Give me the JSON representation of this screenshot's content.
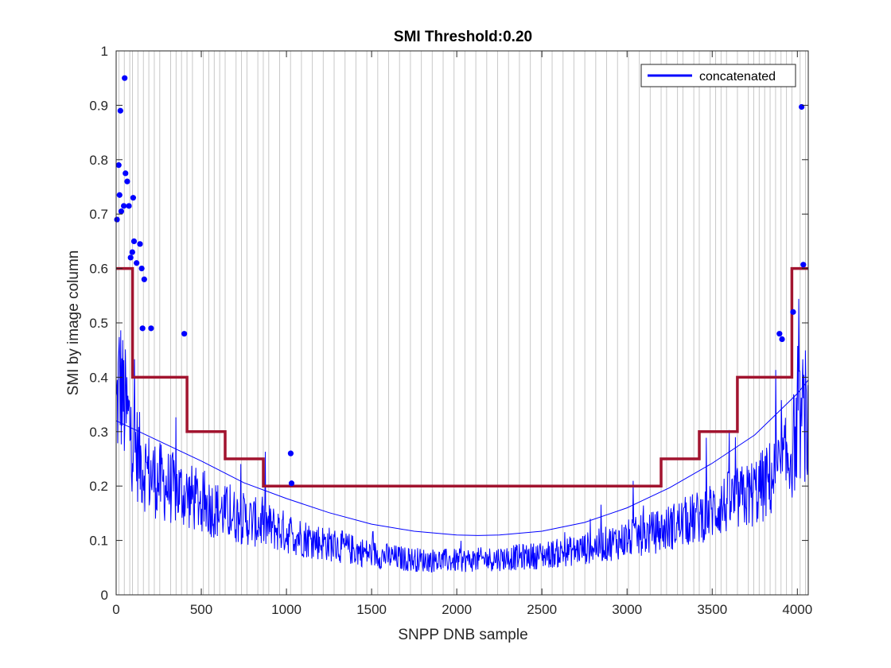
{
  "chart_data": {
    "type": "line",
    "title": "SMI Threshold:0.20",
    "xlabel": "SNPP DNB sample",
    "ylabel": "SMI by image column",
    "xlim": [
      0,
      4064
    ],
    "ylim": [
      0,
      1
    ],
    "xticks": [
      0,
      500,
      1000,
      1500,
      2000,
      2500,
      3000,
      3500,
      4000
    ],
    "xtick_labels": [
      "0",
      "500",
      "1000",
      "1500",
      "2000",
      "2500",
      "3000",
      "3500",
      "4000"
    ],
    "yticks": [
      0,
      0.1,
      0.2,
      0.3,
      0.4,
      0.5,
      0.6,
      0.7,
      0.8,
      0.9,
      1
    ],
    "ytick_labels": [
      "0",
      "0.1",
      "0.2",
      "0.3",
      "0.4",
      "0.5",
      "0.6",
      "0.7",
      "0.8",
      "0.9",
      "1"
    ],
    "grid": false,
    "legend": {
      "position": "top-right",
      "entries": [
        "concatenated"
      ]
    },
    "colors": {
      "series": "#0000ff",
      "threshold": "#a2142f",
      "aggregation_lines": "#c8c8c8"
    },
    "aggregation_boundaries": [
      16,
      48,
      80,
      96,
      128,
      160,
      192,
      224,
      256,
      320,
      352,
      384,
      416,
      448,
      512,
      544,
      576,
      608,
      640,
      704,
      736,
      768,
      832,
      864,
      896,
      960,
      1024,
      1088,
      1152,
      1216,
      1280,
      1344,
      1408,
      1472,
      1536,
      1600,
      1664,
      1728,
      1792,
      1856,
      1920,
      1984,
      2048,
      2112,
      2176,
      2240,
      2304,
      2368,
      2432,
      2496,
      2560,
      2624,
      2688,
      2752,
      2816,
      2880,
      2944,
      3008,
      3072,
      3136,
      3200,
      3232,
      3296,
      3328,
      3392,
      3424,
      3488,
      3520,
      3552,
      3584,
      3648,
      3712,
      3744,
      3776,
      3808,
      3840,
      3872,
      3904,
      3936,
      3968,
      4016,
      4048
    ],
    "series": [
      {
        "name": "concatenated",
        "style": "noisy-line",
        "x": [
          0,
          20,
          40,
          60,
          80,
          100,
          150,
          200,
          300,
          400,
          500,
          600,
          700,
          800,
          900,
          1000,
          1100,
          1200,
          1300,
          1400,
          1500,
          1600,
          1700,
          1800,
          1900,
          2000,
          2100,
          2200,
          2300,
          2400,
          2500,
          2600,
          2700,
          2800,
          2900,
          3000,
          3100,
          3200,
          3300,
          3400,
          3500,
          3600,
          3700,
          3800,
          3900,
          3950,
          4000,
          4030,
          4064
        ],
        "values": [
          0.33,
          0.4,
          0.36,
          0.33,
          0.31,
          0.28,
          0.24,
          0.22,
          0.2,
          0.185,
          0.17,
          0.155,
          0.145,
          0.135,
          0.125,
          0.115,
          0.105,
          0.097,
          0.09,
          0.082,
          0.075,
          0.07,
          0.066,
          0.064,
          0.063,
          0.063,
          0.064,
          0.066,
          0.068,
          0.07,
          0.073,
          0.077,
          0.082,
          0.088,
          0.095,
          0.103,
          0.11,
          0.118,
          0.13,
          0.14,
          0.155,
          0.17,
          0.18,
          0.2,
          0.23,
          0.25,
          0.3,
          0.33,
          0.3
        ]
      },
      {
        "name": "threshold",
        "style": "step",
        "x": [
          0,
          96,
          96,
          416,
          416,
          640,
          640,
          864,
          864,
          3200,
          3200,
          3424,
          3424,
          3648,
          3648,
          3968,
          3968,
          4064
        ],
        "values": [
          0.6,
          0.6,
          0.4,
          0.4,
          0.3,
          0.3,
          0.25,
          0.25,
          0.2,
          0.2,
          0.25,
          0.25,
          0.3,
          0.3,
          0.4,
          0.4,
          0.6,
          0.6
        ]
      },
      {
        "name": "fit",
        "style": "thin-line",
        "x": [
          0,
          250,
          500,
          750,
          1000,
          1250,
          1500,
          1750,
          2000,
          2125,
          2250,
          2500,
          2750,
          3000,
          3250,
          3500,
          3750,
          4000,
          4064
        ],
        "values": [
          0.32,
          0.283,
          0.246,
          0.206,
          0.177,
          0.151,
          0.13,
          0.117,
          0.11,
          0.109,
          0.11,
          0.117,
          0.133,
          0.16,
          0.197,
          0.242,
          0.294,
          0.37,
          0.395
        ]
      }
    ],
    "outliers": {
      "x": [
        5,
        15,
        20,
        25,
        30,
        45,
        50,
        55,
        65,
        75,
        85,
        95,
        100,
        105,
        120,
        140,
        150,
        155,
        165,
        205,
        400,
        1025,
        1030,
        3895,
        3910,
        3975,
        4025,
        4035
      ],
      "values": [
        0.69,
        0.79,
        0.735,
        0.89,
        0.705,
        0.715,
        0.95,
        0.775,
        0.76,
        0.715,
        0.62,
        0.63,
        0.73,
        0.65,
        0.61,
        0.645,
        0.6,
        0.49,
        0.58,
        0.49,
        0.48,
        0.26,
        0.205,
        0.48,
        0.47,
        0.52,
        0.897,
        0.607
      ]
    }
  }
}
